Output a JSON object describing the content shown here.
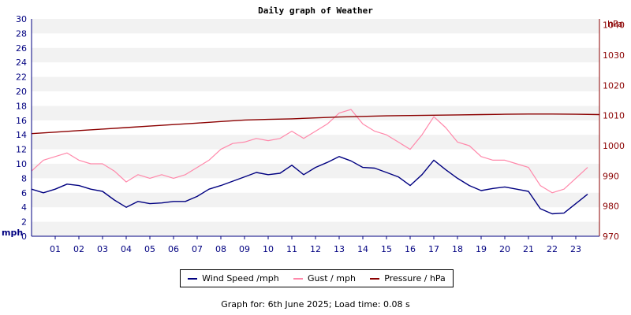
{
  "chart_data": {
    "type": "line",
    "title": "Daily graph of Weather",
    "xlabel": "",
    "x_ticks": [
      "01",
      "02",
      "03",
      "04",
      "05",
      "06",
      "07",
      "08",
      "09",
      "10",
      "11",
      "12",
      "13",
      "14",
      "15",
      "16",
      "17",
      "18",
      "19",
      "20",
      "21",
      "22",
      "23"
    ],
    "xlim": [
      0,
      24
    ],
    "ylabel_left": "mph",
    "ylim_left": [
      0,
      30
    ],
    "yticks_left": [
      0,
      2,
      4,
      6,
      8,
      10,
      12,
      14,
      16,
      18,
      20,
      22,
      24,
      26,
      28,
      30
    ],
    "ylabel_right": "hPa",
    "ylim_right": [
      970,
      1042
    ],
    "yticks_right": [
      970,
      980,
      990,
      1000,
      1010,
      1020,
      1030,
      1040
    ],
    "grid": "alternating horizontal bands",
    "legend_position": "bottom",
    "series": [
      {
        "name": "Wind Speed /mph",
        "axis": "left",
        "color": "#000080",
        "x": [
          0,
          0.5,
          1,
          1.5,
          2,
          2.5,
          3,
          3.5,
          4,
          4.5,
          5,
          5.5,
          6,
          6.5,
          7,
          7.5,
          8,
          8.5,
          9,
          9.5,
          10,
          10.5,
          11,
          11.5,
          12,
          12.5,
          13,
          13.5,
          14,
          14.5,
          15,
          15.5,
          16,
          16.5,
          17,
          17.5,
          18,
          18.5,
          19,
          19.5,
          20,
          20.5,
          21,
          21.5,
          22,
          22.5,
          23,
          23.5
        ],
        "values": [
          6.5,
          6,
          6.5,
          7.2,
          7,
          6.5,
          6.2,
          5,
          4,
          4.8,
          4.5,
          4.6,
          4.8,
          4.8,
          5.5,
          6.5,
          7,
          7.6,
          8.2,
          8.8,
          8.5,
          8.7,
          9.8,
          8.5,
          9.5,
          10.2,
          11,
          10.4,
          9.5,
          9.4,
          8.8,
          8.2,
          7,
          8.5,
          10.5,
          9.2,
          8,
          7,
          6.3,
          6.6,
          6.8,
          6.5,
          6.2,
          3.8,
          3.1,
          3.2,
          4.5,
          5.8
        ]
      },
      {
        "name": "Gust / mph",
        "axis": "left",
        "color": "#ff88aa",
        "x": [
          0,
          0.5,
          1,
          1.5,
          2,
          2.5,
          3,
          3.5,
          4,
          4.5,
          5,
          5.5,
          6,
          6.5,
          7,
          7.5,
          8,
          8.5,
          9,
          9.5,
          10,
          10.5,
          11,
          11.5,
          12,
          12.5,
          13,
          13.5,
          14,
          14.5,
          15,
          15.5,
          16,
          16.5,
          17,
          17.5,
          18,
          18.5,
          19,
          19.5,
          20,
          20.5,
          21,
          21.5,
          22,
          22.5,
          23,
          23.5
        ],
        "values": [
          9,
          10.5,
          11,
          11.5,
          10.5,
          10,
          10,
          9,
          7.5,
          8.5,
          8,
          8.5,
          8,
          8.5,
          9.5,
          10.5,
          12,
          12.8,
          13,
          13.5,
          13.2,
          13.5,
          14.5,
          13.5,
          14.5,
          15.5,
          17,
          17.5,
          15.5,
          14.5,
          14,
          13,
          12,
          14,
          16.5,
          15,
          13,
          12.5,
          11,
          10.5,
          10.5,
          10,
          9.5,
          7,
          6,
          6.5,
          8,
          9.5
        ]
      },
      {
        "name": "Pressure / hPa",
        "axis": "right",
        "color": "#8b0000",
        "x": [
          0,
          1,
          2,
          3,
          4,
          5,
          6,
          7,
          8,
          9,
          10,
          11,
          12,
          13,
          14,
          15,
          16,
          17,
          18,
          19,
          20,
          21,
          22,
          23,
          24
        ],
        "values": [
          1004,
          1004.5,
          1005,
          1005.5,
          1006,
          1006.5,
          1007,
          1007.5,
          1008,
          1008.5,
          1008.7,
          1008.9,
          1009.2,
          1009.5,
          1009.7,
          1009.9,
          1010,
          1010.1,
          1010.2,
          1010.3,
          1010.4,
          1010.5,
          1010.5,
          1010.4,
          1010.3
        ]
      }
    ]
  },
  "footer": {
    "text": "Graph for:  6th June 2025; Load time: 0.08 s"
  }
}
